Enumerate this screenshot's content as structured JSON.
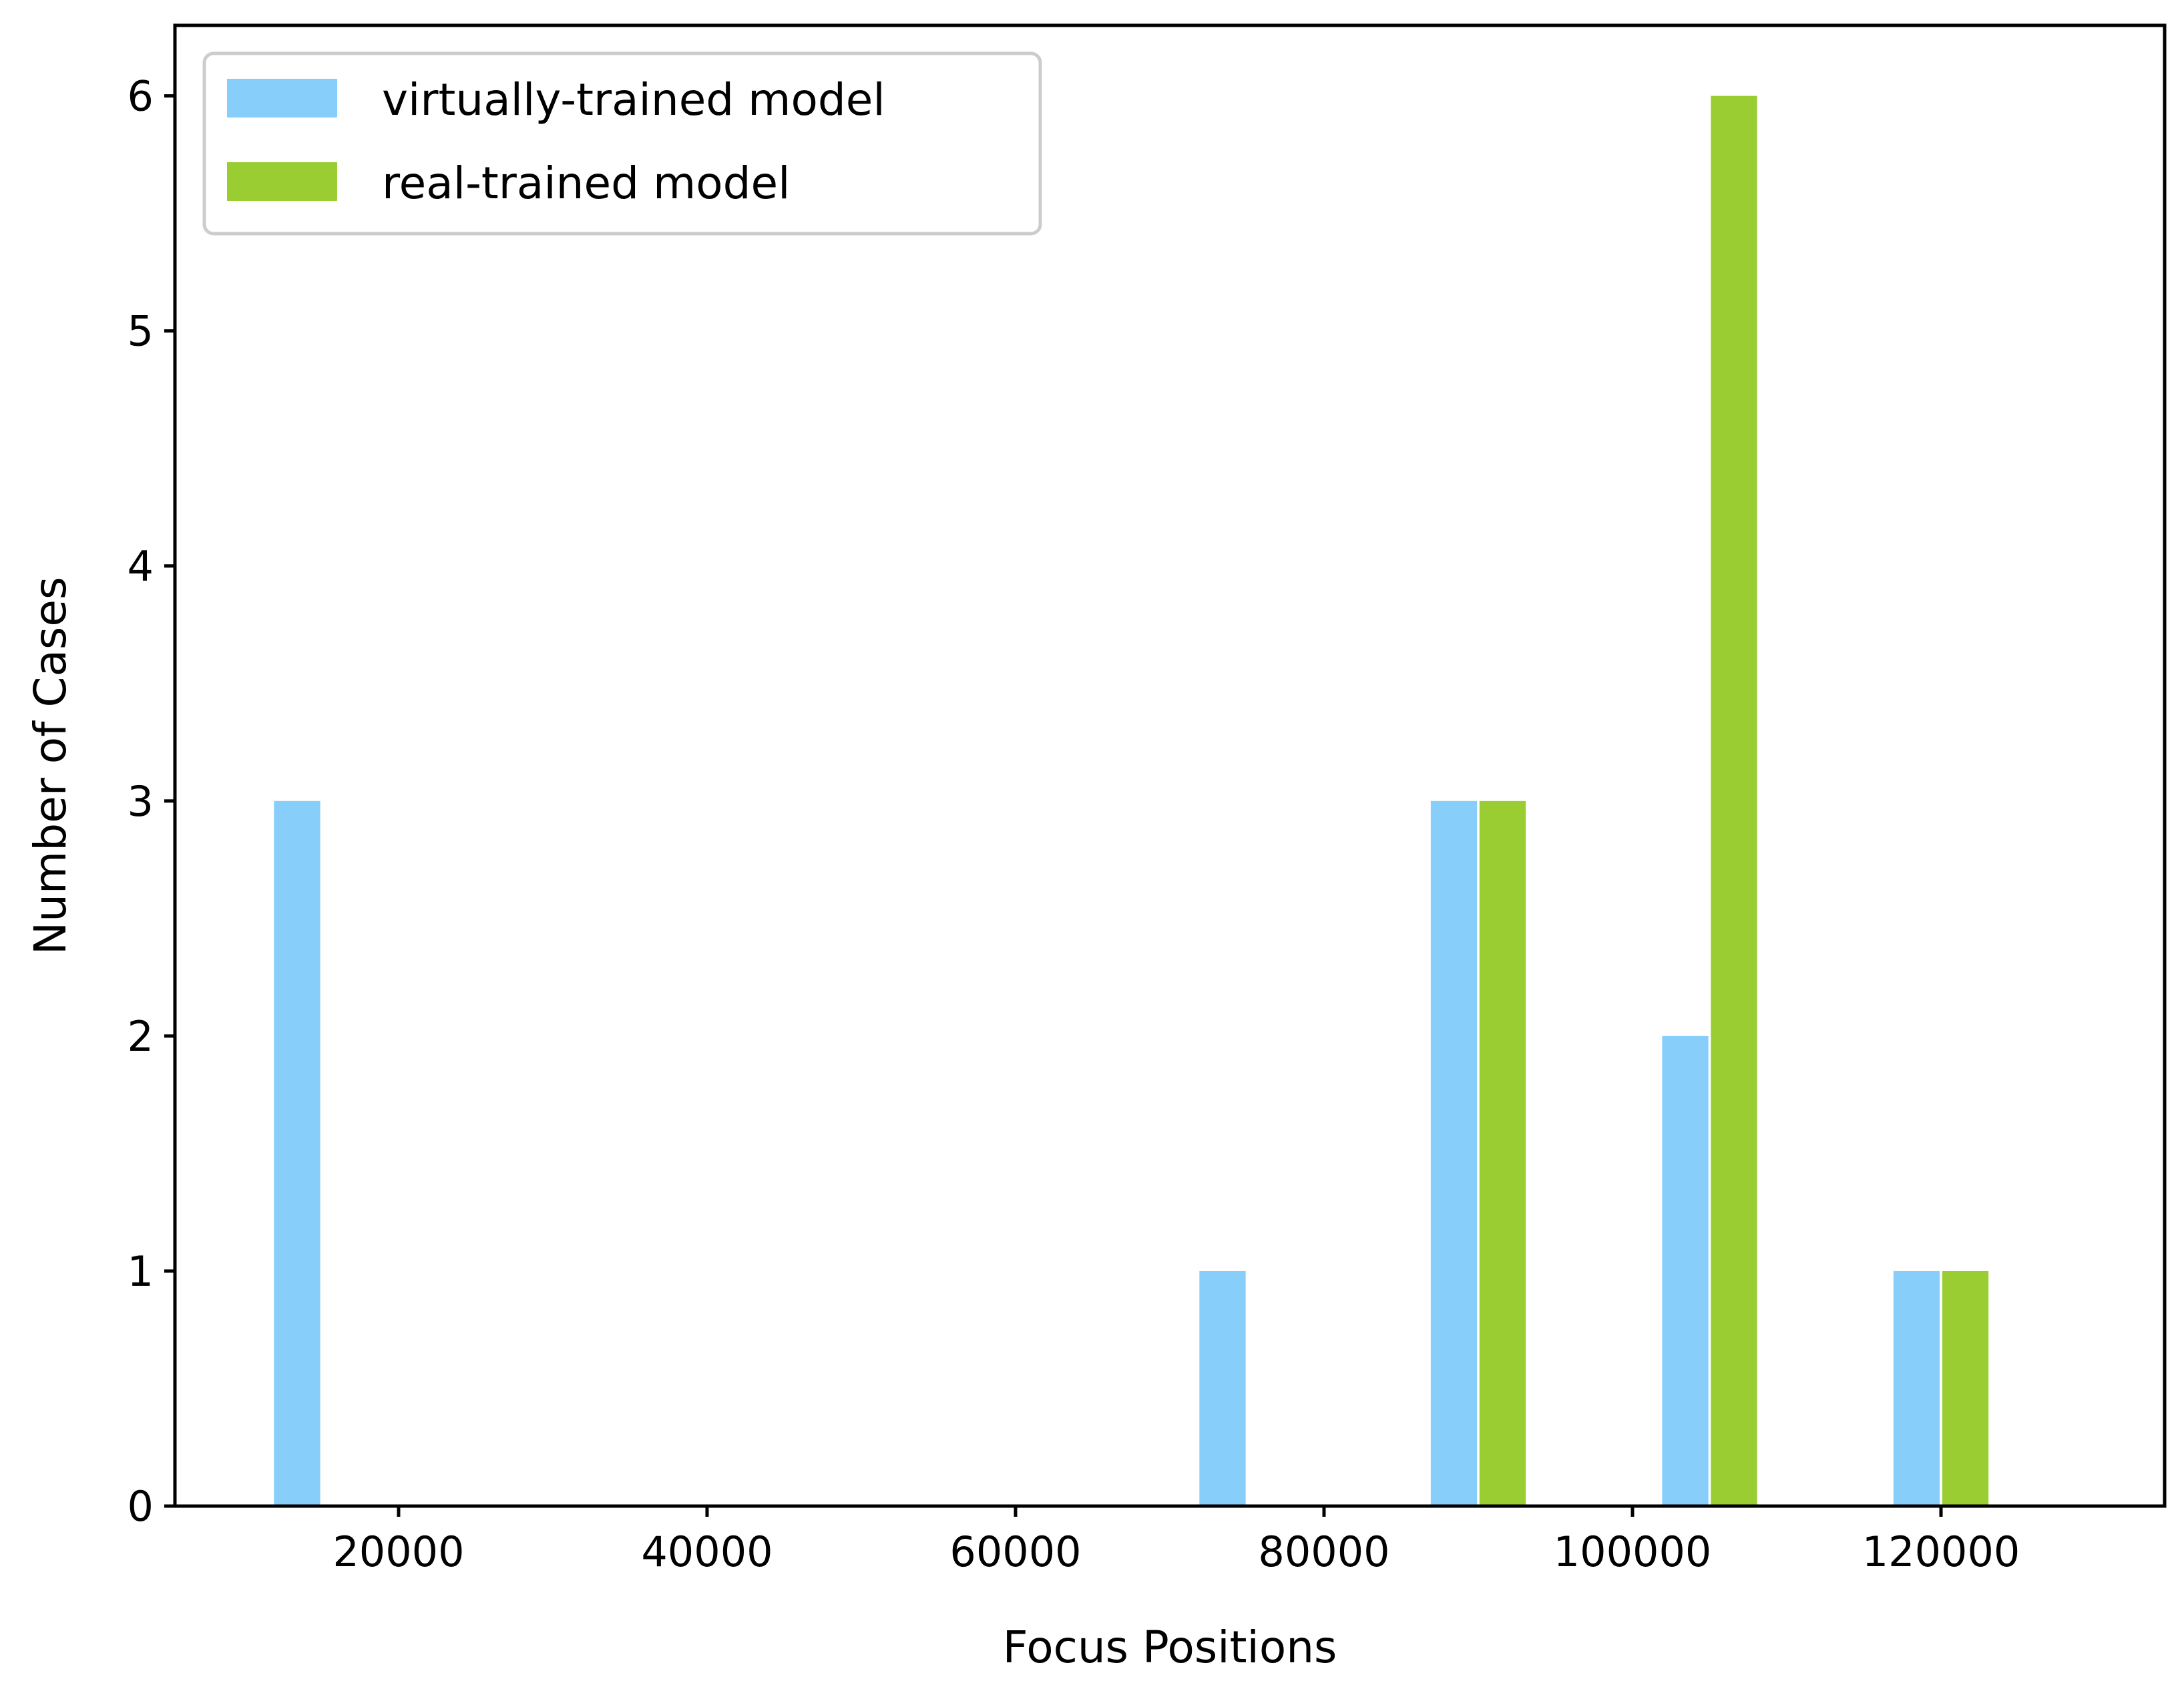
{
  "chart_data": {
    "type": "bar",
    "xlabel": "Focus Positions",
    "ylabel": "Number of Cases",
    "xlim": [
      5500,
      134500
    ],
    "ylim": [
      0,
      6.3
    ],
    "x_ticks": [
      "20000",
      "40000",
      "60000",
      "80000",
      "100000",
      "120000"
    ],
    "y_ticks": [
      "0",
      "1",
      "2",
      "3",
      "4",
      "5",
      "6"
    ],
    "legend_position": "top-left",
    "grid": false,
    "bin_centers": [
      15000,
      75000,
      90000,
      105000,
      120000
    ],
    "series": [
      {
        "name": "virtually-trained model",
        "color": "#87CEFA",
        "values": [
          3,
          1,
          3,
          2,
          1
        ]
      },
      {
        "name": "real-trained model",
        "color": "#9ACD32",
        "values": [
          0,
          0,
          3,
          6,
          1
        ]
      }
    ]
  }
}
